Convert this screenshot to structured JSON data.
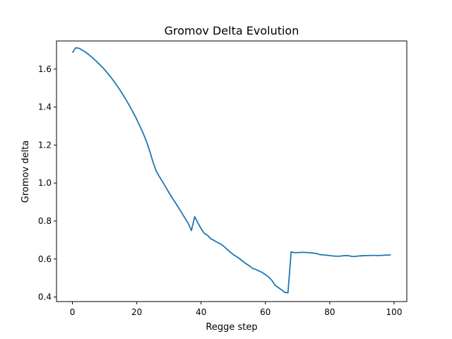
{
  "chart_data": {
    "type": "line",
    "title": "Gromov Delta Evolution",
    "xlabel": "Regge step",
    "ylabel": "Gromov delta",
    "xlim": [
      -4.95,
      103.95
    ],
    "ylim": [
      0.376,
      1.748
    ],
    "xticks": [
      0,
      20,
      40,
      60,
      80,
      100
    ],
    "yticks": [
      0.4,
      0.6,
      0.8,
      1.0,
      1.2,
      1.4,
      1.6
    ],
    "xtick_labels": [
      "0",
      "20",
      "40",
      "60",
      "80",
      "100"
    ],
    "ytick_labels": [
      "0.4",
      "0.6",
      "0.8",
      "1.0",
      "1.2",
      "1.4",
      "1.6"
    ],
    "grid": false,
    "series": [
      {
        "color": "#1f77b4",
        "x": [
          0,
          1,
          2,
          3,
          4,
          5,
          6,
          7,
          8,
          9,
          10,
          11,
          12,
          13,
          14,
          15,
          16,
          17,
          18,
          19,
          20,
          21,
          22,
          23,
          24,
          25,
          26,
          27,
          28,
          29,
          30,
          31,
          32,
          33,
          34,
          35,
          36,
          37,
          38,
          39,
          40,
          41,
          42,
          43,
          44,
          45,
          46,
          47,
          48,
          49,
          50,
          51,
          52,
          53,
          54,
          55,
          56,
          57,
          58,
          59,
          60,
          61,
          62,
          63,
          64,
          65,
          66,
          67,
          68,
          69,
          70,
          71,
          72,
          73,
          74,
          75,
          76,
          77,
          78,
          79,
          80,
          81,
          82,
          83,
          84,
          85,
          86,
          87,
          88,
          89,
          90,
          91,
          92,
          93,
          94,
          95,
          96,
          97,
          98,
          99
        ],
        "y": [
          1.686,
          1.712,
          1.71,
          1.7,
          1.69,
          1.677,
          1.663,
          1.648,
          1.632,
          1.615,
          1.597,
          1.577,
          1.556,
          1.533,
          1.509,
          1.484,
          1.457,
          1.429,
          1.399,
          1.368,
          1.335,
          1.299,
          1.262,
          1.22,
          1.17,
          1.113,
          1.065,
          1.035,
          1.007,
          0.979,
          0.95,
          0.922,
          0.897,
          0.87,
          0.843,
          0.815,
          0.788,
          0.75,
          0.823,
          0.79,
          0.76,
          0.735,
          0.725,
          0.707,
          0.698,
          0.688,
          0.68,
          0.668,
          0.652,
          0.638,
          0.623,
          0.613,
          0.601,
          0.588,
          0.575,
          0.564,
          0.551,
          0.545,
          0.537,
          0.529,
          0.518,
          0.505,
          0.488,
          0.462,
          0.45,
          0.438,
          0.425,
          0.422,
          0.638,
          0.633,
          0.634,
          0.635,
          0.635,
          0.634,
          0.633,
          0.631,
          0.629,
          0.623,
          0.622,
          0.62,
          0.618,
          0.616,
          0.615,
          0.615,
          0.617,
          0.618,
          0.617,
          0.613,
          0.614,
          0.616,
          0.617,
          0.618,
          0.618,
          0.619,
          0.619,
          0.618,
          0.619,
          0.62,
          0.621,
          0.622
        ]
      }
    ]
  }
}
